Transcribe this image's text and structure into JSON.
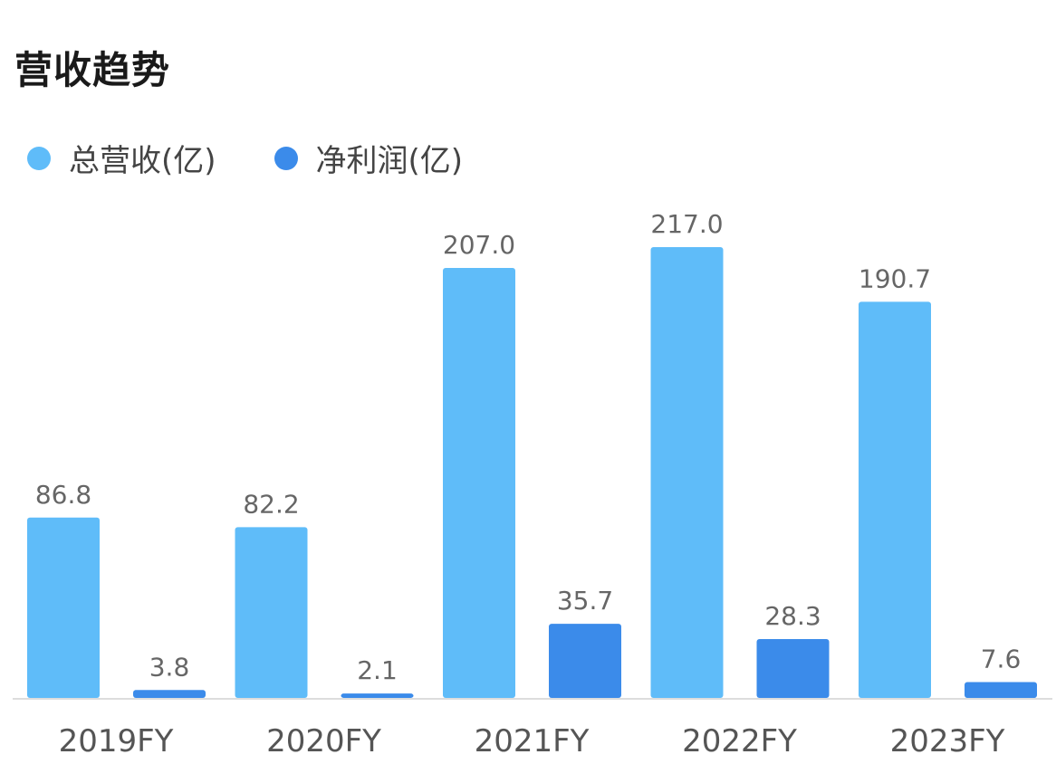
{
  "title": "营收趋势",
  "chart_data": {
    "type": "bar",
    "categories": [
      "2019FY",
      "2020FY",
      "2021FY",
      "2022FY",
      "2023FY"
    ],
    "series": [
      {
        "name": "总营收(亿)",
        "color": "#5fbcf9",
        "values": [
          86.8,
          82.2,
          207.0,
          217.0,
          190.7
        ],
        "labels": [
          "86.8",
          "82.2",
          "207.0",
          "217.0",
          "190.7"
        ]
      },
      {
        "name": "净利润(亿)",
        "color": "#3b8bea",
        "values": [
          3.8,
          2.1,
          35.7,
          28.3,
          7.6
        ],
        "labels": [
          "3.8",
          "2.1",
          "35.7",
          "28.3",
          "7.6"
        ]
      }
    ],
    "legend_position": "top-left",
    "grid": false,
    "axis_color": "#dddddd",
    "label_color": "#666666",
    "tick_color": "#555555"
  }
}
